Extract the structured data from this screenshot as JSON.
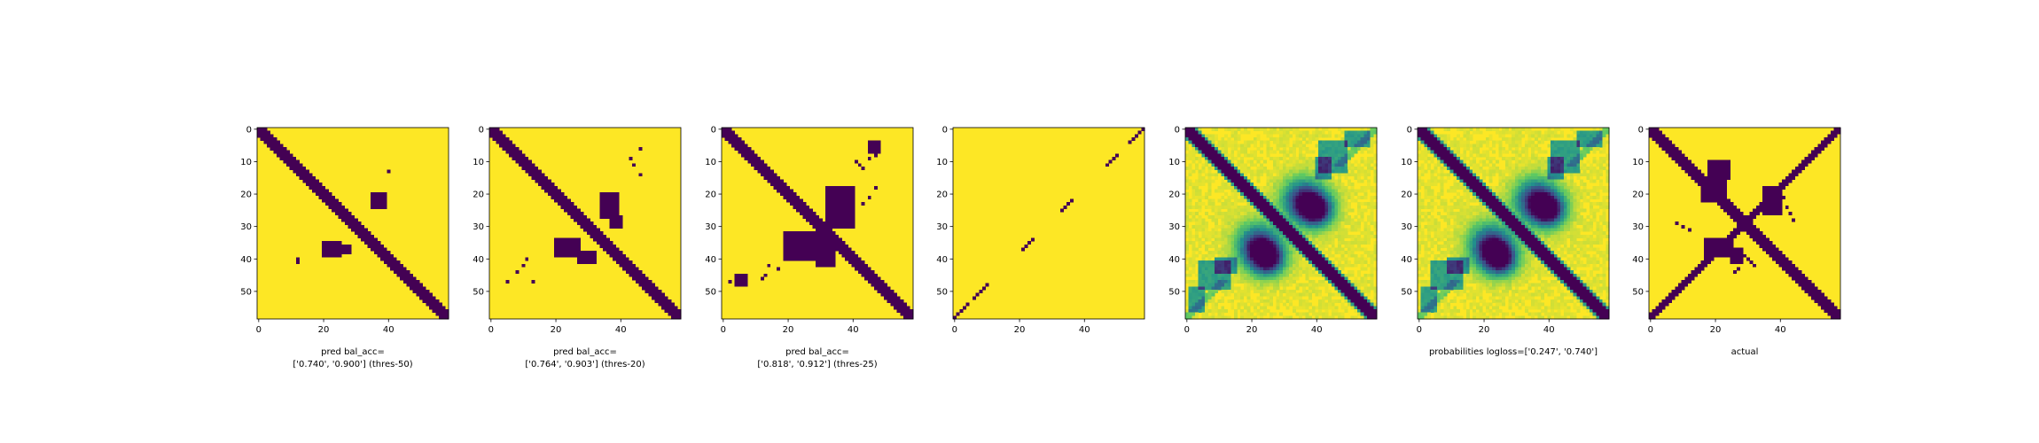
{
  "colors": {
    "low": "#440154",
    "high": "#fde725",
    "axis": "#000000"
  },
  "chart_data": [
    {
      "type": "heatmap",
      "kind": "binary",
      "grid_size": 59,
      "xticks": [
        0,
        20,
        40
      ],
      "yticks": [
        0,
        10,
        20,
        30,
        40,
        50
      ],
      "xlabel": [
        "pred bal_acc=",
        "['0.740', '0.900'] (thres-50)"
      ],
      "low_cells": {
        "diagonal": {
          "width": 5
        },
        "blobs": [
          {
            "r": [
              20,
              24
            ],
            "c": [
              35,
              39
            ]
          },
          {
            "r": [
              35,
              39
            ],
            "c": [
              20,
              25
            ]
          },
          {
            "r": [
              36,
              38
            ],
            "c": [
              25,
              28
            ]
          }
        ],
        "cells": [
          [
            13,
            40
          ],
          [
            40,
            12
          ],
          [
            41,
            12
          ]
        ]
      }
    },
    {
      "type": "heatmap",
      "kind": "binary",
      "grid_size": 59,
      "xticks": [
        0,
        20,
        40
      ],
      "yticks": [
        0,
        10,
        20,
        30,
        40,
        50
      ],
      "xlabel": [
        "pred bal_acc=",
        "['0.764', '0.903'] (thres-20)"
      ],
      "low_cells": {
        "diagonal": {
          "width": 5
        },
        "blobs": [
          {
            "r": [
              20,
              27
            ],
            "c": [
              34,
              39
            ]
          },
          {
            "r": [
              27,
              30
            ],
            "c": [
              37,
              40
            ]
          },
          {
            "r": [
              34,
              39
            ],
            "c": [
              20,
              27
            ]
          },
          {
            "r": [
              38,
              41
            ],
            "c": [
              27,
              32
            ]
          }
        ],
        "cells": [
          [
            9,
            43
          ],
          [
            11,
            44
          ],
          [
            14,
            46
          ],
          [
            40,
            11
          ],
          [
            42,
            10
          ],
          [
            44,
            8
          ],
          [
            47,
            5
          ],
          [
            47,
            13
          ],
          [
            6,
            46
          ]
        ]
      }
    },
    {
      "type": "heatmap",
      "kind": "binary",
      "grid_size": 59,
      "xticks": [
        0,
        20,
        40
      ],
      "yticks": [
        0,
        10,
        20,
        30,
        40,
        50
      ],
      "xlabel": [
        "pred bal_acc=",
        "['0.818', '0.912'] (thres-25)"
      ],
      "low_cells": {
        "diagonal": {
          "width": 5
        },
        "blobs": [
          {
            "r": [
              18,
              30
            ],
            "c": [
              32,
              40
            ]
          },
          {
            "r": [
              32,
              40
            ],
            "c": [
              19,
              32
            ]
          },
          {
            "r": [
              36,
              42
            ],
            "c": [
              29,
              34
            ]
          },
          {
            "r": [
              4,
              7
            ],
            "c": [
              45,
              48
            ]
          },
          {
            "r": [
              45,
              48
            ],
            "c": [
              4,
              7
            ]
          }
        ],
        "cells": [
          [
            10,
            41
          ],
          [
            11,
            42
          ],
          [
            12,
            43
          ],
          [
            8,
            47
          ],
          [
            9,
            45
          ],
          [
            18,
            47
          ],
          [
            21,
            45
          ],
          [
            23,
            43
          ],
          [
            45,
            13
          ],
          [
            46,
            12
          ],
          [
            43,
            17
          ],
          [
            42,
            14
          ],
          [
            47,
            2
          ],
          [
            47,
            5
          ]
        ]
      }
    },
    {
      "type": "heatmap",
      "kind": "binary",
      "grid_size": 59,
      "xticks": [
        0,
        20,
        40
      ],
      "yticks": [
        0,
        10,
        20,
        30,
        40,
        50
      ],
      "xlabel": [],
      "low_cells": {
        "anti_segments": [
          {
            "r": [
              0,
              4
            ]
          },
          {
            "r": [
              8,
              11
            ]
          },
          {
            "r": [
              22,
              25
            ]
          },
          {
            "r": [
              34,
              37
            ]
          },
          {
            "r": [
              48,
              52
            ]
          },
          {
            "r": [
              54,
              58
            ]
          }
        ]
      }
    },
    {
      "type": "heatmap",
      "kind": "probability",
      "grid_size": 59,
      "xticks": [
        0,
        20,
        40
      ],
      "yticks": [
        0,
        10,
        20,
        30,
        40,
        50
      ],
      "xlabel": []
    },
    {
      "type": "heatmap",
      "kind": "probability",
      "grid_size": 59,
      "xticks": [
        0,
        20,
        40
      ],
      "yticks": [
        0,
        10,
        20,
        30,
        40,
        50
      ],
      "xlabel": [
        "probabilities logloss=['0.247', '0.740']"
      ]
    },
    {
      "type": "heatmap",
      "kind": "binary",
      "grid_size": 59,
      "xticks": [
        0,
        20,
        40
      ],
      "yticks": [
        0,
        10,
        20,
        30,
        40,
        50
      ],
      "xlabel": [
        "actual"
      ],
      "low_cells": {
        "diagonal": {
          "width": 5
        },
        "anti_band": {
          "width": 3
        },
        "blobs": [
          {
            "r": [
              10,
              15
            ],
            "c": [
              18,
              24
            ]
          },
          {
            "r": [
              15,
              22
            ],
            "c": [
              16,
              23
            ]
          },
          {
            "r": [
              18,
              26
            ],
            "c": [
              35,
              40
            ]
          },
          {
            "r": [
              34,
              39
            ],
            "c": [
              17,
              25
            ]
          },
          {
            "r": [
              37,
              41
            ],
            "c": [
              25,
              28
            ]
          }
        ],
        "cells": [
          [
            21,
            41
          ],
          [
            24,
            42
          ],
          [
            26,
            43
          ],
          [
            28,
            44
          ],
          [
            39,
            29
          ],
          [
            40,
            30
          ],
          [
            41,
            31
          ],
          [
            42,
            32
          ],
          [
            43,
            27
          ],
          [
            44,
            26
          ],
          [
            29,
            8
          ],
          [
            30,
            10
          ],
          [
            31,
            12
          ]
        ]
      }
    }
  ]
}
